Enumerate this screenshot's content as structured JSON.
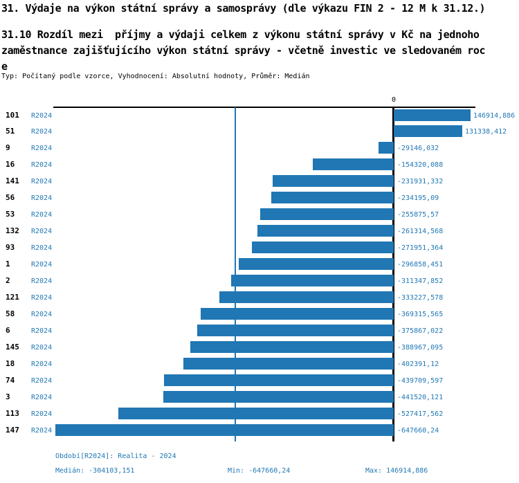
{
  "header": {
    "title": "31. Výdaje na výkon státní správy a samosprávy (dle výkazu FIN 2 - 12 M k 31.12.)",
    "subtitle": "31.10 Rozdíl mezi  příjmy a výdaji celkem z výkonu státní správy v Kč na jednoho\nzaměstnance zajišťujícího výkon státní správy - včetně investic ve sledovaném roc\ne",
    "meta": "Typ: Počítaný podle vzorce, Vyhodnocení: Absolutní hodnoty, Průměr: Medián"
  },
  "chart_data": {
    "type": "bar",
    "orientation": "horizontal",
    "title": "31.10 Rozdíl mezi příjmy a výdaji celkem z výkonu státní správy v Kč na jednoho zaměstnance zajišťujícího výkon státní správy - včetně investic ve sledovaném roce",
    "xlabel": "",
    "ylabel": "",
    "zero_tick": "0",
    "xlim": [
      -647660.24,
      146914.886
    ],
    "median": -304103.151,
    "legend_position": "none",
    "grid": false,
    "categories": [
      "101",
      "51",
      "9",
      "16",
      "141",
      "56",
      "53",
      "132",
      "93",
      "1",
      "2",
      "121",
      "58",
      "6",
      "145",
      "18",
      "74",
      "3",
      "113",
      "147"
    ],
    "series_label": "R2024",
    "rows": [
      {
        "id": "101",
        "period": "R2024",
        "value": 146914.886,
        "display": "146914,886"
      },
      {
        "id": "51",
        "period": "R2024",
        "value": 131338.412,
        "display": "131338,412"
      },
      {
        "id": "9",
        "period": "R2024",
        "value": -29146.032,
        "display": "-29146,032"
      },
      {
        "id": "16",
        "period": "R2024",
        "value": -154320.088,
        "display": "-154320,088"
      },
      {
        "id": "141",
        "period": "R2024",
        "value": -231931.332,
        "display": "-231931,332"
      },
      {
        "id": "56",
        "period": "R2024",
        "value": -234195.09,
        "display": "-234195,09"
      },
      {
        "id": "53",
        "period": "R2024",
        "value": -255875.57,
        "display": "-255875,57"
      },
      {
        "id": "132",
        "period": "R2024",
        "value": -261314.568,
        "display": "-261314,568"
      },
      {
        "id": "93",
        "period": "R2024",
        "value": -271951.364,
        "display": "-271951,364"
      },
      {
        "id": "1",
        "period": "R2024",
        "value": -296858.451,
        "display": "-296858,451"
      },
      {
        "id": "2",
        "period": "R2024",
        "value": -311347.852,
        "display": "-311347,852"
      },
      {
        "id": "121",
        "period": "R2024",
        "value": -333227.578,
        "display": "-333227,578"
      },
      {
        "id": "58",
        "period": "R2024",
        "value": -369315.565,
        "display": "-369315,565"
      },
      {
        "id": "6",
        "period": "R2024",
        "value": -375867.022,
        "display": "-375867,022"
      },
      {
        "id": "145",
        "period": "R2024",
        "value": -388967.095,
        "display": "-388967,095"
      },
      {
        "id": "18",
        "period": "R2024",
        "value": -402391.12,
        "display": "-402391,12"
      },
      {
        "id": "74",
        "period": "R2024",
        "value": -439709.597,
        "display": "-439709,597"
      },
      {
        "id": "3",
        "period": "R2024",
        "value": -441520.121,
        "display": "-441520,121"
      },
      {
        "id": "113",
        "period": "R2024",
        "value": -527417.562,
        "display": "-527417,562"
      },
      {
        "id": "147",
        "period": "R2024",
        "value": -647660.24,
        "display": "-647660,24"
      }
    ]
  },
  "footer": {
    "period": "Období[R2024]: Realita - 2024",
    "median": "Medián: -304103,151",
    "min": "Min: -647660,24",
    "max": "Max: 146914,886"
  },
  "colors": {
    "bar": "#2077b4",
    "blue_text": "#1f77b4",
    "axis": "#000000"
  }
}
